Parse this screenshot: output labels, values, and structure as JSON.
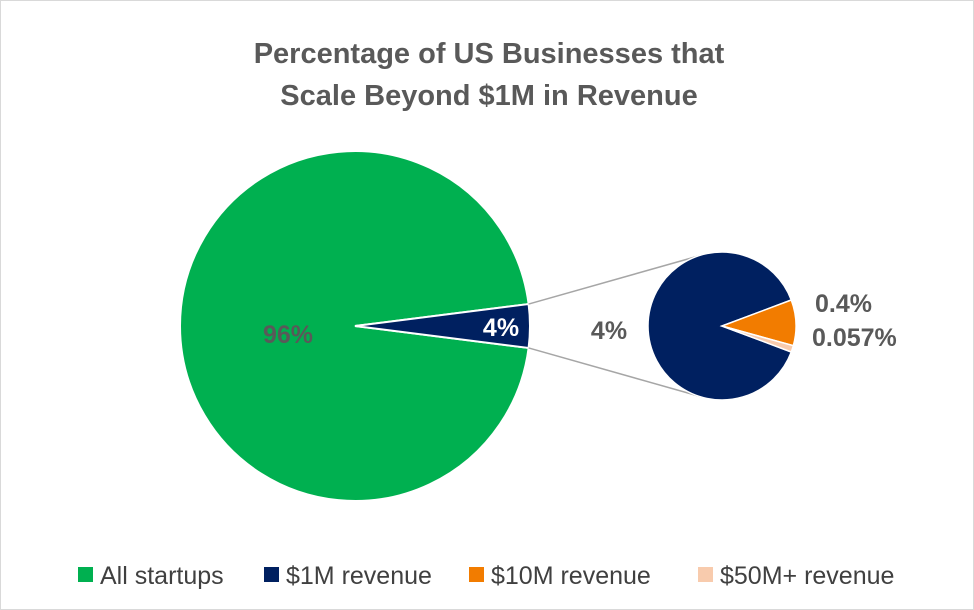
{
  "chart_data": {
    "type": "pie",
    "subtype": "pie-of-pie",
    "title_lines": [
      "Percentage of US Businesses that",
      "Scale Beyond $1M in Revenue"
    ],
    "main_pie": {
      "slices": [
        {
          "name": "All startups",
          "value": 96,
          "label": "96%",
          "color": "#00b050"
        },
        {
          "name": "$1M revenue",
          "value": 4,
          "label": "4%",
          "color": "#002060"
        }
      ]
    },
    "secondary_pie": {
      "total_label": "4%",
      "slices": [
        {
          "name": "$1M revenue",
          "value": 3.543,
          "color": "#002060"
        },
        {
          "name": "$10M revenue",
          "value": 0.4,
          "label": "0.4%",
          "color": "#f27c00"
        },
        {
          "name": "$50M+ revenue",
          "value": 0.057,
          "label": "0.057%",
          "color": "#f8cbad"
        }
      ]
    },
    "connector_color": "#a6a6a6",
    "legend": {
      "placement": "bottom",
      "entries": [
        {
          "label": "All startups",
          "color": "#00b050"
        },
        {
          "label": "$1M revenue",
          "color": "#002060"
        },
        {
          "label": "$10M revenue",
          "color": "#f27c00"
        },
        {
          "label": "$50M+ revenue",
          "color": "#f8cbad"
        }
      ]
    }
  }
}
